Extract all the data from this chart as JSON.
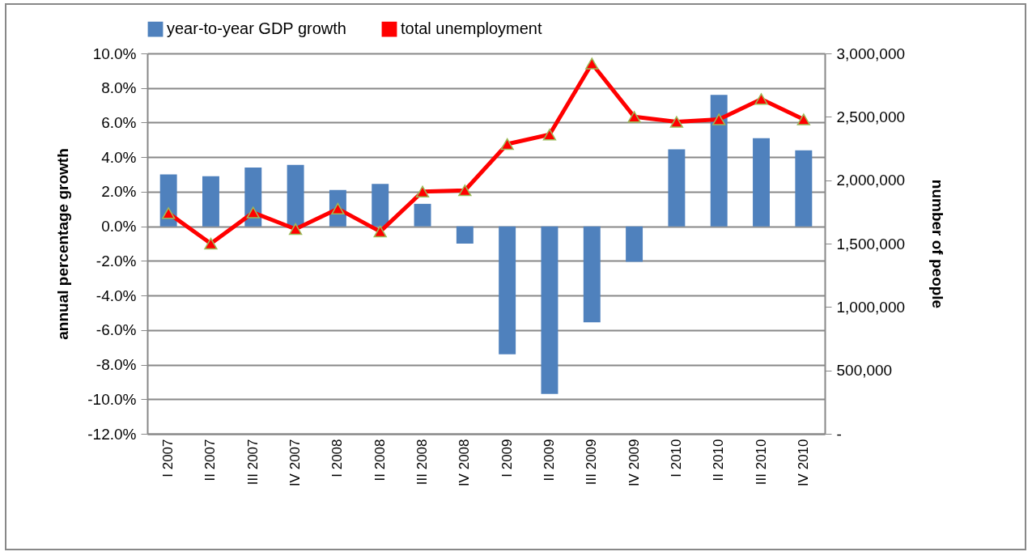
{
  "chart_data": {
    "type": "bar",
    "ylabel": "annual percentage growth",
    "y2label": "number of people",
    "categories": [
      "I 2007",
      "II 2007",
      "III 2007",
      "IV 2007",
      "I 2008",
      "II 2008",
      "III 2008",
      "IV 2008",
      "I 2009",
      "II 2009",
      "III 2009",
      "IV 2009",
      "I 2010",
      "II 2010",
      "III 2010",
      "IV 2010"
    ],
    "series": [
      {
        "name": "year-to-year GDP growth",
        "color": "#4f81bd",
        "values": [
          3.0,
          2.9,
          3.4,
          3.55,
          2.1,
          2.45,
          1.3,
          -1.0,
          -7.4,
          -9.7,
          -5.55,
          -2.05,
          4.45,
          7.6,
          5.1,
          4.4
        ]
      },
      {
        "name": "total unemployment",
        "type": "line",
        "axis": "y2",
        "color": "#ff0000",
        "values": [
          1740000,
          1500000,
          1745000,
          1615000,
          1775000,
          1595000,
          1910000,
          1920000,
          2285000,
          2360000,
          2920000,
          2500000,
          2460000,
          2480000,
          2640000,
          2480000
        ]
      }
    ],
    "ylim": [
      -12,
      10
    ],
    "yticks": [
      {
        "value": -12,
        "label": "-12.0%"
      },
      {
        "value": -10,
        "label": "-10.0%"
      },
      {
        "value": -8,
        "label": "-8.0%"
      },
      {
        "value": -6,
        "label": "-6.0%"
      },
      {
        "value": -4,
        "label": "-4.0%"
      },
      {
        "value": -2,
        "label": "-2.0%"
      },
      {
        "value": 0,
        "label": "0.0%"
      },
      {
        "value": 2,
        "label": "2.0%"
      },
      {
        "value": 4,
        "label": "4.0%"
      },
      {
        "value": 6,
        "label": "6.0%"
      },
      {
        "value": 8,
        "label": "8.0%"
      },
      {
        "value": 10,
        "label": "10.0%"
      }
    ],
    "y2lim": [
      0,
      3000000
    ],
    "y2ticks": [
      {
        "value": 0,
        "label": "-"
      },
      {
        "value": 500000,
        "label": "500,000"
      },
      {
        "value": 1000000,
        "label": "1,000,000"
      },
      {
        "value": 1500000,
        "label": "1,500,000"
      },
      {
        "value": 2000000,
        "label": "2,000,000"
      },
      {
        "value": 2500000,
        "label": "2,500,000"
      },
      {
        "value": 3000000,
        "label": "3,000,000"
      }
    ],
    "grid": "y",
    "legend": "top",
    "marker": "triangle",
    "line_style": "solid"
  }
}
